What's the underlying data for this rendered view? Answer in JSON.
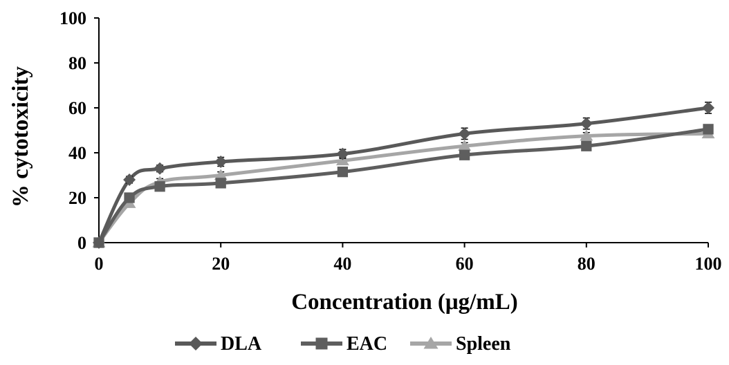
{
  "chart_data": {
    "type": "line",
    "title": "",
    "xlabel": "Concentration (μg/mL)",
    "ylabel": "% cytotoxicity",
    "x": [
      0,
      5,
      10,
      20,
      40,
      60,
      80,
      100
    ],
    "x_ticks": [
      0,
      20,
      40,
      60,
      80,
      100
    ],
    "y_ticks": [
      0,
      20,
      40,
      60,
      80,
      100
    ],
    "xlim": [
      0,
      100
    ],
    "ylim": [
      0,
      100
    ],
    "grid": false,
    "legend_position": "bottom",
    "series": [
      {
        "name": "DLA",
        "marker": "diamond",
        "color": "#595959",
        "values": [
          0,
          28,
          33,
          36,
          39.5,
          48.5,
          53,
          60
        ],
        "errors": [
          0,
          1.5,
          1.5,
          2,
          2,
          2.5,
          2.5,
          2.5
        ]
      },
      {
        "name": "EAC",
        "marker": "square",
        "color": "#5e5e5e",
        "values": [
          0,
          20,
          25,
          26.5,
          31.5,
          39,
          43,
          50.5
        ],
        "errors": [
          0,
          1.5,
          1.5,
          1.5,
          1.5,
          1.5,
          1.5,
          1.5
        ]
      },
      {
        "name": "Spleen",
        "marker": "triangle",
        "color": "#a6a6a6",
        "values": [
          0,
          17.5,
          27,
          30,
          36.5,
          43,
          47.5,
          48.5
        ],
        "errors": [
          0,
          1.5,
          1.5,
          1.5,
          1.5,
          1.5,
          1.5,
          1.5
        ]
      }
    ]
  }
}
